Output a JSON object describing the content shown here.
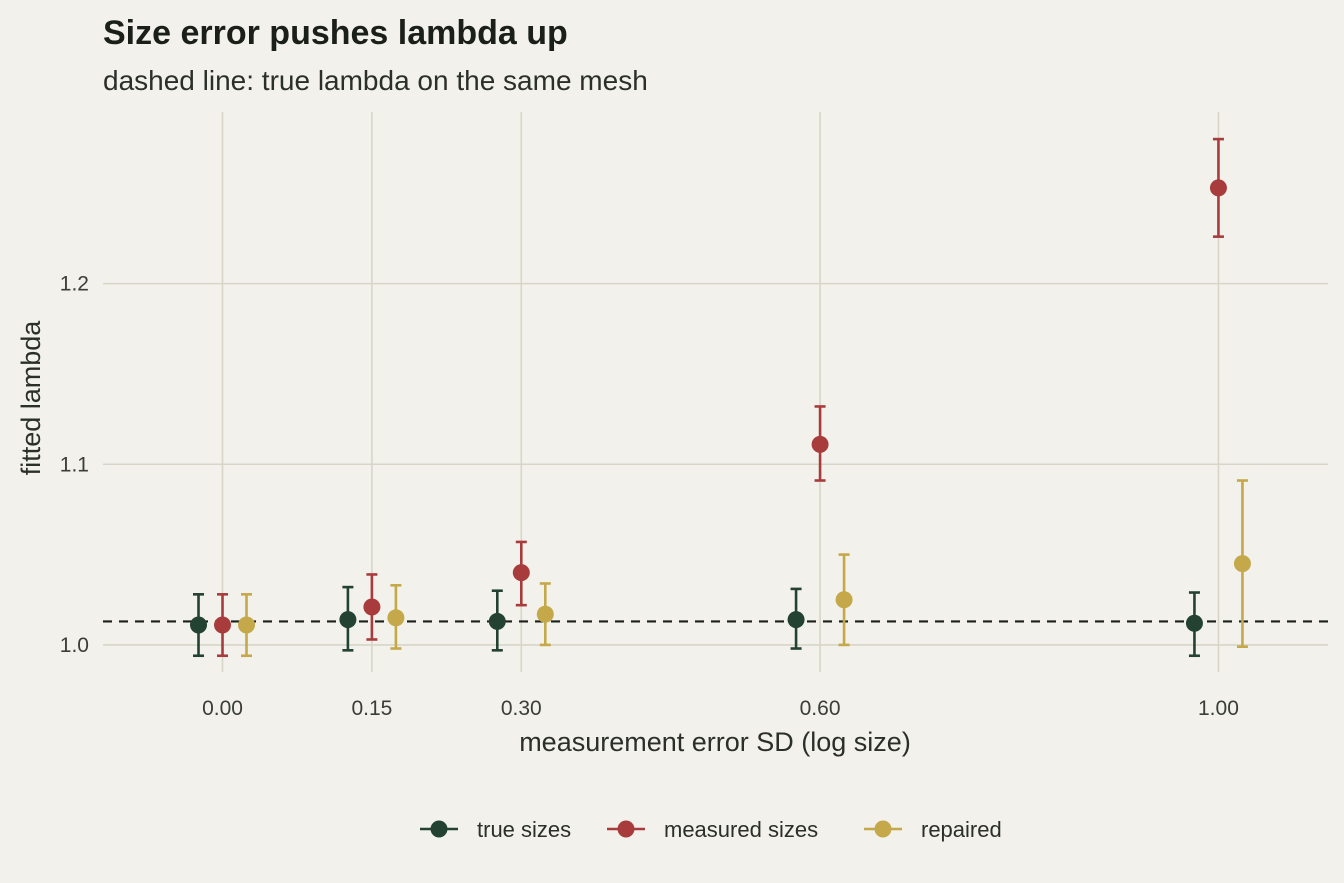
{
  "chart_data": {
    "type": "scatter",
    "title": "Size error pushes lambda up",
    "subtitle": "dashed line: true lambda on the same mesh",
    "xlabel": "measurement error SD (log size)",
    "ylabel": "fitted lambda",
    "x_categories": [
      0.0,
      0.15,
      0.3,
      0.6,
      1.0
    ],
    "x_tick_labels": [
      "0.00",
      "0.15",
      "0.30",
      "0.60",
      "1.00"
    ],
    "y_ticks": [
      1.0,
      1.1,
      1.2
    ],
    "y_tick_labels": [
      "1.0",
      "1.1",
      "1.2"
    ],
    "xlim": [
      -0.12,
      1.11
    ],
    "ylim": [
      0.985,
      1.295
    ],
    "reference_line": {
      "y": 1.013,
      "style": "dashed",
      "color": "#1b1f1a"
    },
    "series": [
      {
        "name": "true sizes",
        "color": "#234232",
        "points": [
          {
            "x": 0.0,
            "y": 1.011,
            "low": 0.994,
            "high": 1.028
          },
          {
            "x": 0.15,
            "y": 1.014,
            "low": 0.997,
            "high": 1.032
          },
          {
            "x": 0.3,
            "y": 1.013,
            "low": 0.997,
            "high": 1.03
          },
          {
            "x": 0.6,
            "y": 1.014,
            "low": 0.998,
            "high": 1.031
          },
          {
            "x": 1.0,
            "y": 1.012,
            "low": 0.994,
            "high": 1.029
          }
        ]
      },
      {
        "name": "measured sizes",
        "color": "#a83c3c",
        "points": [
          {
            "x": 0.0,
            "y": 1.011,
            "low": 0.994,
            "high": 1.028
          },
          {
            "x": 0.15,
            "y": 1.021,
            "low": 1.003,
            "high": 1.039
          },
          {
            "x": 0.3,
            "y": 1.04,
            "low": 1.022,
            "high": 1.057
          },
          {
            "x": 0.6,
            "y": 1.111,
            "low": 1.091,
            "high": 1.132
          },
          {
            "x": 1.0,
            "y": 1.253,
            "low": 1.226,
            "high": 1.28
          }
        ]
      },
      {
        "name": "repaired",
        "color": "#c4a84a",
        "points": [
          {
            "x": 0.0,
            "y": 1.011,
            "low": 0.994,
            "high": 1.028
          },
          {
            "x": 0.15,
            "y": 1.015,
            "low": 0.998,
            "high": 1.033
          },
          {
            "x": 0.3,
            "y": 1.017,
            "low": 1.0,
            "high": 1.034
          },
          {
            "x": 0.6,
            "y": 1.025,
            "low": 1.0,
            "high": 1.05
          },
          {
            "x": 1.0,
            "y": 1.045,
            "low": 0.999,
            "high": 1.091
          }
        ]
      }
    ],
    "legend": {
      "position": "bottom"
    },
    "grid": true
  }
}
